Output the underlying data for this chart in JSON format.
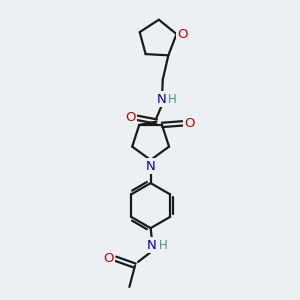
{
  "bg_color": "#edf0f2",
  "bond_color": "#1a1a1a",
  "O_color": "#cc0000",
  "N_color": "#0000cc",
  "H_color": "#4a9090",
  "line_width": 1.6,
  "font_size": 9.5,
  "xlim": [
    -2.0,
    2.8
  ],
  "ylim": [
    -4.8,
    4.8
  ]
}
